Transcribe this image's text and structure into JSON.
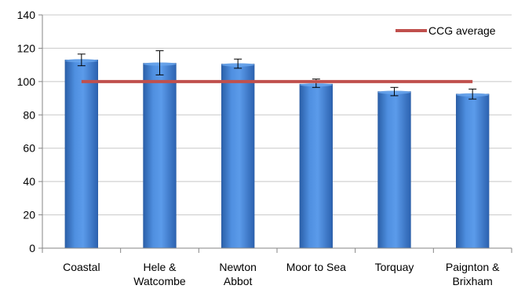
{
  "chart_data": {
    "type": "bar",
    "categories": [
      [
        "Coastal"
      ],
      [
        "Hele &",
        "Watcombe"
      ],
      [
        "Newton",
        "Abbot"
      ],
      [
        "Moor to Sea"
      ],
      [
        "Torquay"
      ],
      [
        "Paignton &",
        "Brixham"
      ]
    ],
    "series": [
      {
        "values": [
          113,
          111,
          110.5,
          98.5,
          94,
          92.5
        ],
        "error_low": [
          109.5,
          104,
          108,
          96.5,
          91.5,
          89.5
        ],
        "error_high": [
          116.5,
          118.5,
          113.5,
          101.5,
          96.5,
          95.5
        ],
        "color": "#3f7fd1"
      }
    ],
    "reference_line": {
      "name": "CCG average",
      "value": 100,
      "color": "#c0504d"
    },
    "title": "",
    "xlabel": "",
    "ylabel": "",
    "ylim": [
      0,
      140
    ],
    "yticks": [
      0,
      20,
      40,
      60,
      80,
      100,
      120,
      140
    ],
    "grid": true,
    "legend": {
      "position": "top-right",
      "entries": [
        "CCG average"
      ]
    }
  }
}
